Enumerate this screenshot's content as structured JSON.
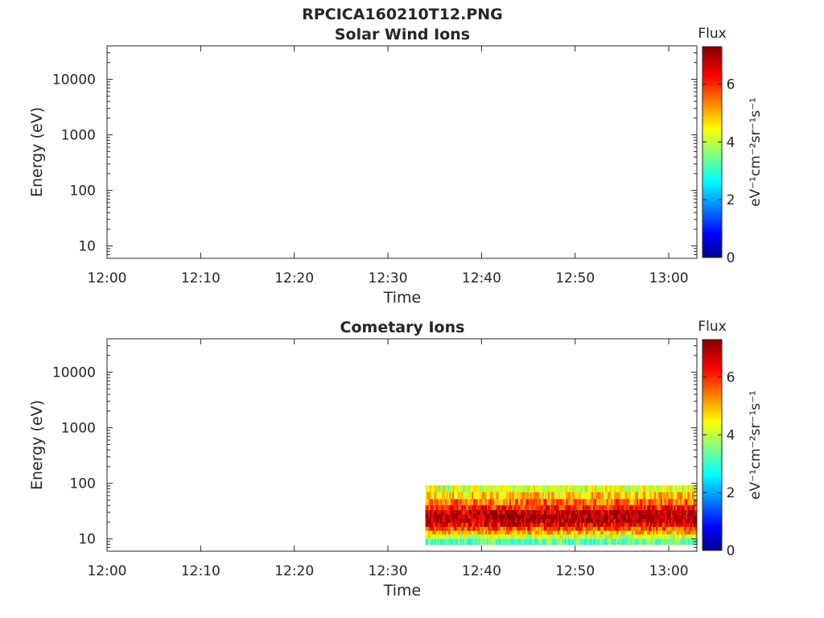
{
  "chart_data": {
    "title": "RPCICA160210T12.PNG",
    "type": "heatmap",
    "panels": [
      {
        "title": "Solar Wind Ions",
        "type": "heatmap",
        "xlabel": "Time",
        "ylabel": "Energy (eV)",
        "x_ticks": [
          "12:00",
          "12:10",
          "12:20",
          "12:30",
          "12:40",
          "12:50",
          "13:00"
        ],
        "x_range_minutes": [
          0,
          63
        ],
        "y_scale": "log",
        "y_ticks": [
          "10",
          "100",
          "1000",
          "10000"
        ],
        "y_range_eV": [
          6,
          40000
        ],
        "colorbar": {
          "title": "Flux",
          "units": "eV⁻¹cm⁻²sr⁻¹s⁻¹",
          "ticks": [
            "0",
            "2",
            "4",
            "6"
          ],
          "range": [
            0,
            7.3
          ],
          "colormap": "jet"
        },
        "data": []
      },
      {
        "title": "Cometary Ions",
        "type": "heatmap",
        "xlabel": "Time",
        "ylabel": "Energy (eV)",
        "x_ticks": [
          "12:00",
          "12:10",
          "12:20",
          "12:30",
          "12:40",
          "12:50",
          "13:00"
        ],
        "x_range_minutes": [
          0,
          63
        ],
        "y_scale": "log",
        "y_ticks": [
          "10",
          "100",
          "1000",
          "10000"
        ],
        "y_range_eV": [
          6,
          40000
        ],
        "colorbar": {
          "title": "Flux",
          "units": "eV⁻¹cm⁻²sr⁻¹s⁻¹",
          "ticks": [
            "0",
            "2",
            "4",
            "6"
          ],
          "range": [
            0,
            7.3
          ],
          "colormap": "jet"
        },
        "data": [
          {
            "time_start": "12:34",
            "time_end": "13:03",
            "energy_eV": 80,
            "flux": 4.3
          },
          {
            "time_start": "12:34",
            "time_end": "13:03",
            "energy_eV": 60,
            "flux": 4.9
          },
          {
            "time_start": "12:34",
            "time_end": "13:03",
            "energy_eV": 45,
            "flux": 5.6
          },
          {
            "time_start": "12:34",
            "time_end": "13:03",
            "energy_eV": 36,
            "flux": 6.2
          },
          {
            "time_start": "12:34",
            "time_end": "13:03",
            "energy_eV": 30,
            "flux": 6.8
          },
          {
            "time_start": "12:34",
            "time_end": "13:03",
            "energy_eV": 25,
            "flux": 7.0
          },
          {
            "time_start": "12:34",
            "time_end": "13:03",
            "energy_eV": 21,
            "flux": 6.9
          },
          {
            "time_start": "12:34",
            "time_end": "13:03",
            "energy_eV": 18,
            "flux": 6.5
          },
          {
            "time_start": "12:34",
            "time_end": "13:03",
            "energy_eV": 15,
            "flux": 5.8
          },
          {
            "time_start": "12:34",
            "time_end": "13:03",
            "energy_eV": 13,
            "flux": 5.1
          },
          {
            "time_start": "12:34",
            "time_end": "13:03",
            "energy_eV": 11,
            "flux": 4.3
          },
          {
            "time_start": "12:34",
            "time_end": "13:03",
            "energy_eV": 9,
            "flux": 3.4
          }
        ]
      }
    ]
  }
}
